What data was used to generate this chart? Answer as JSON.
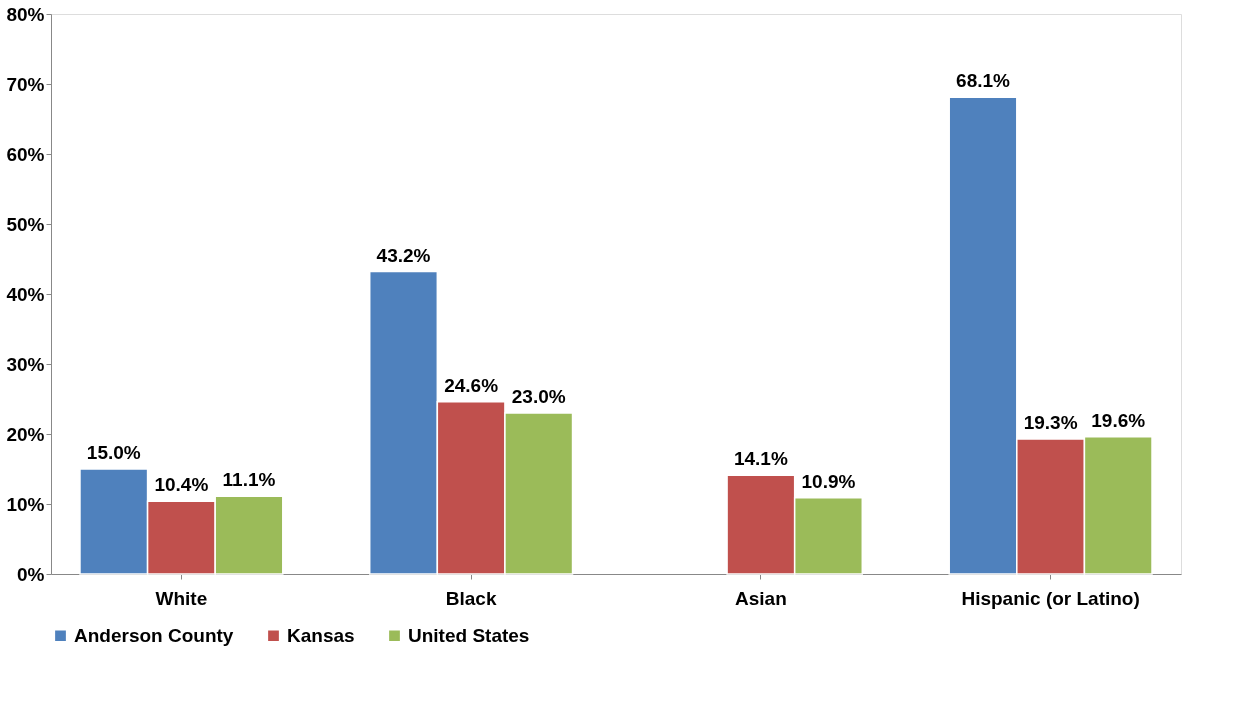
{
  "chart_data": {
    "type": "bar",
    "categories": [
      "White",
      "Black",
      "Asian",
      "Hispanic (or Latino)"
    ],
    "series": [
      {
        "name": "Anderson County",
        "color": "#4f81bd",
        "values": [
          15.0,
          43.2,
          null,
          68.1
        ],
        "value_labels": [
          "15.0%",
          "43.2%",
          null,
          "68.1%"
        ]
      },
      {
        "name": "Kansas",
        "color": "#c0504d",
        "values": [
          10.4,
          24.6,
          14.1,
          19.3
        ],
        "value_labels": [
          "10.4%",
          "24.6%",
          "14.1%",
          "19.3%"
        ]
      },
      {
        "name": "United States",
        "color": "#9bbb59",
        "values": [
          11.1,
          23.0,
          10.9,
          19.6
        ],
        "value_labels": [
          "11.1%",
          "23.0%",
          "10.9%",
          "19.6%"
        ]
      }
    ],
    "ylim": [
      0,
      80
    ],
    "yticks": [
      {
        "value": 0,
        "label": "0%"
      },
      {
        "value": 10,
        "label": "10%"
      },
      {
        "value": 20,
        "label": "20%"
      },
      {
        "value": 30,
        "label": "30%"
      },
      {
        "value": 40,
        "label": "40%"
      },
      {
        "value": 50,
        "label": "50%"
      },
      {
        "value": 60,
        "label": "60%"
      },
      {
        "value": 70,
        "label": "70%"
      },
      {
        "value": 80,
        "label": "80%"
      }
    ],
    "grid": false,
    "legend": "bottom"
  }
}
